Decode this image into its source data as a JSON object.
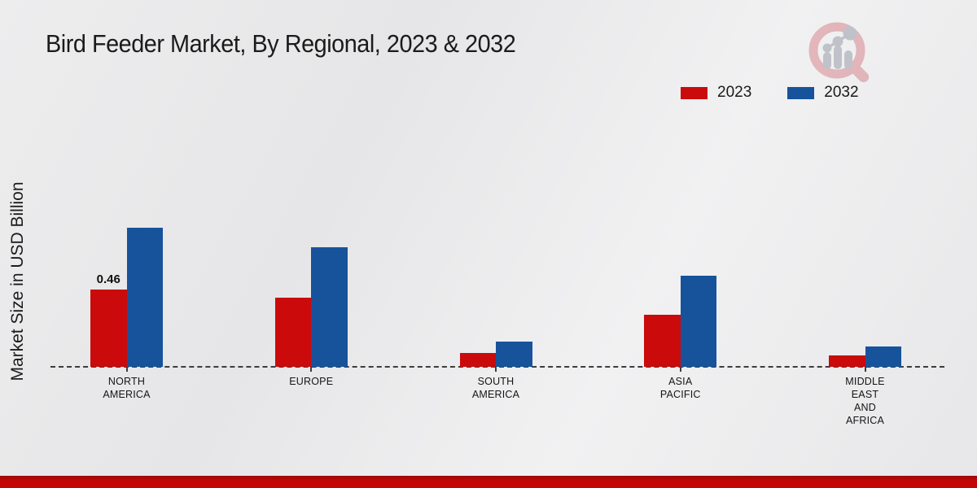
{
  "chart_data": {
    "type": "bar",
    "title": "Bird Feeder Market, By Regional, 2023 & 2032",
    "categories": [
      "NORTH AMERICA",
      "EUROPE",
      "SOUTH AMERICA",
      "ASIA PACIFIC",
      "MIDDLE EAST AND AFRICA"
    ],
    "series": [
      {
        "name": "2023",
        "color": "#cb0a0c",
        "values": [
          0.46,
          0.41,
          0.08,
          0.31,
          0.07
        ]
      },
      {
        "name": "2032",
        "color": "#17539b",
        "values": [
          0.83,
          0.71,
          0.15,
          0.54,
          0.12
        ]
      }
    ],
    "xlabel": "",
    "ylabel": "Market Size in USD Billion",
    "ylim": [
      0,
      1
    ],
    "grid": false,
    "legend_position": "top-right",
    "annotations": [
      {
        "text": "0.46",
        "series": "2023",
        "category": "NORTH AMERICA"
      }
    ]
  },
  "footer": {
    "bar_color": "#c20606",
    "bar_edge_color": "#9e0808"
  },
  "logo": {
    "name": "market-research-magnifier-logo",
    "ring_color": "#dc9fa5",
    "bars_color": "#bfc3c9"
  }
}
